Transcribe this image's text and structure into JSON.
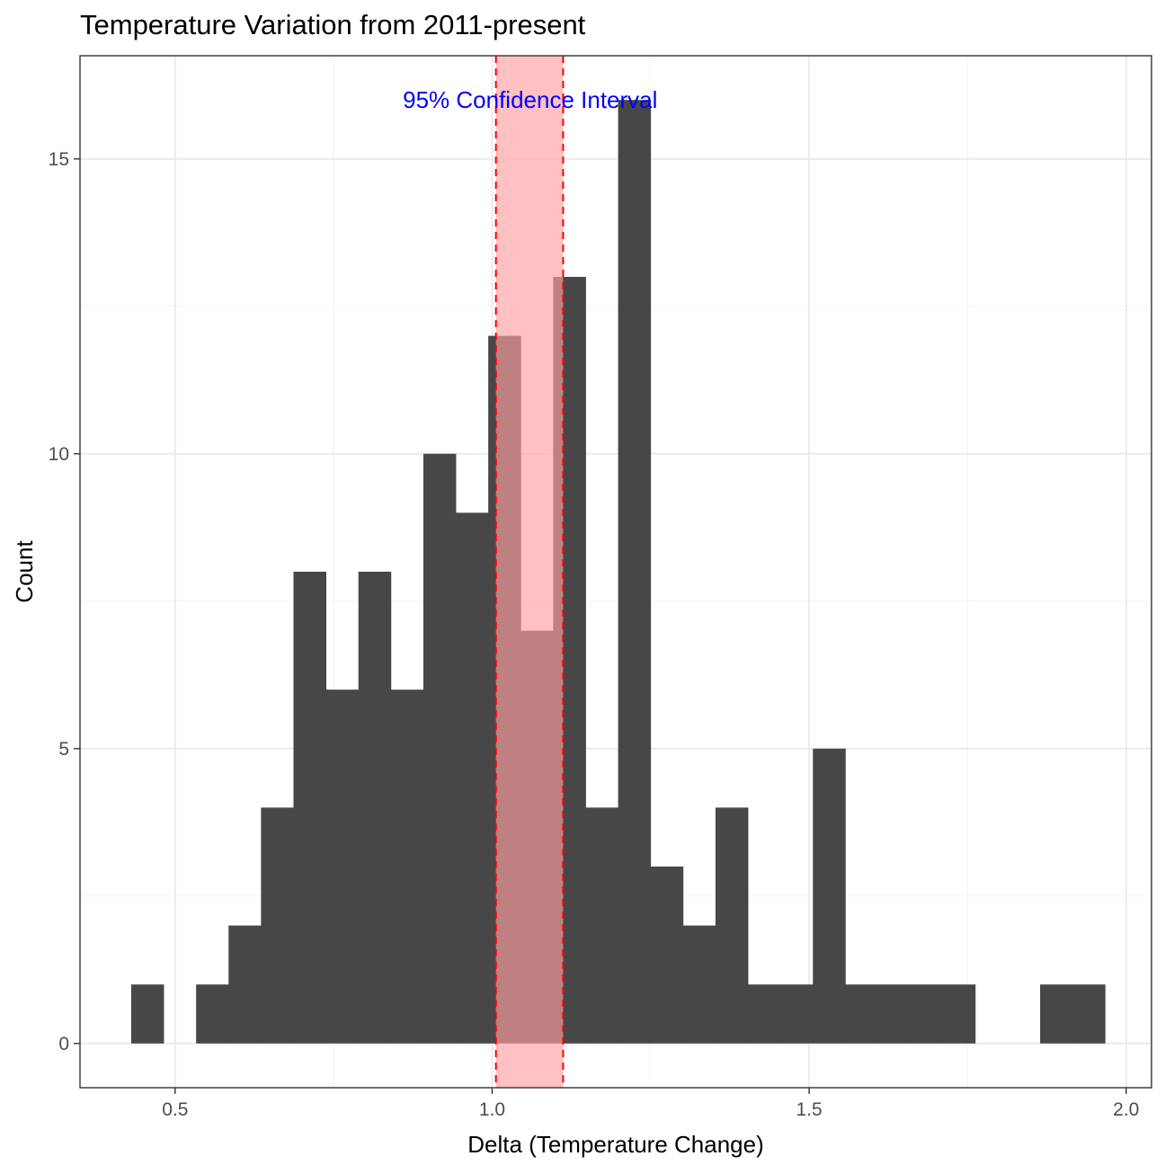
{
  "chart_data": {
    "type": "bar",
    "title": "Temperature Variation from 2011-present",
    "xlabel": "Delta (Temperature Change)",
    "ylabel": "Count",
    "xlim": [
      0.35,
      2.04
    ],
    "ylim": [
      -0.75,
      16.75
    ],
    "x_ticks": [
      {
        "value": 0.5,
        "label": "0.5"
      },
      {
        "value": 1.0,
        "label": "1.0"
      },
      {
        "value": 1.5,
        "label": "1.5"
      },
      {
        "value": 2.0,
        "label": "2.0"
      }
    ],
    "y_ticks": [
      {
        "value": 0,
        "label": "0"
      },
      {
        "value": 5,
        "label": "5"
      },
      {
        "value": 10,
        "label": "10"
      },
      {
        "value": 15,
        "label": "15"
      }
    ],
    "grid": true,
    "bin_width": 0.0512,
    "bars": [
      {
        "x0": 0.4307,
        "count": 1
      },
      {
        "x0": 0.4819,
        "count": 0
      },
      {
        "x0": 0.5331,
        "count": 1
      },
      {
        "x0": 0.5843,
        "count": 2
      },
      {
        "x0": 0.6355,
        "count": 4
      },
      {
        "x0": 0.6867,
        "count": 8
      },
      {
        "x0": 0.7379,
        "count": 6
      },
      {
        "x0": 0.7891,
        "count": 8
      },
      {
        "x0": 0.8403,
        "count": 6
      },
      {
        "x0": 0.8915,
        "count": 10
      },
      {
        "x0": 0.9427,
        "count": 9
      },
      {
        "x0": 0.9939,
        "count": 12
      },
      {
        "x0": 1.0451,
        "count": 7
      },
      {
        "x0": 1.0963,
        "count": 13
      },
      {
        "x0": 1.1475,
        "count": 4
      },
      {
        "x0": 1.1987,
        "count": 16
      },
      {
        "x0": 1.2499,
        "count": 3
      },
      {
        "x0": 1.3011,
        "count": 2
      },
      {
        "x0": 1.3523,
        "count": 4
      },
      {
        "x0": 1.4035,
        "count": 1
      },
      {
        "x0": 1.4547,
        "count": 1
      },
      {
        "x0": 1.5059,
        "count": 5
      },
      {
        "x0": 1.5571,
        "count": 1
      },
      {
        "x0": 1.6083,
        "count": 1
      },
      {
        "x0": 1.6595,
        "count": 1
      },
      {
        "x0": 1.7107,
        "count": 1
      },
      {
        "x0": 1.7619,
        "count": 0
      },
      {
        "x0": 1.8131,
        "count": 0
      },
      {
        "x0": 1.8643,
        "count": 1
      },
      {
        "x0": 1.9155,
        "count": 1
      }
    ],
    "confidence_interval": {
      "lower": 1.006,
      "upper": 1.112
    },
    "annotation": {
      "text": "95% Confidence Interval",
      "x": 1.06,
      "y": 16
    },
    "colors": {
      "bar": "#474747",
      "ci_fill": "#ffa0a0",
      "ci_line": "#ff0000",
      "annotation": "#0000ff",
      "grid_major": "#ebebeb",
      "grid_minor": "#f3f3f3",
      "panel_border": "#333333"
    }
  }
}
